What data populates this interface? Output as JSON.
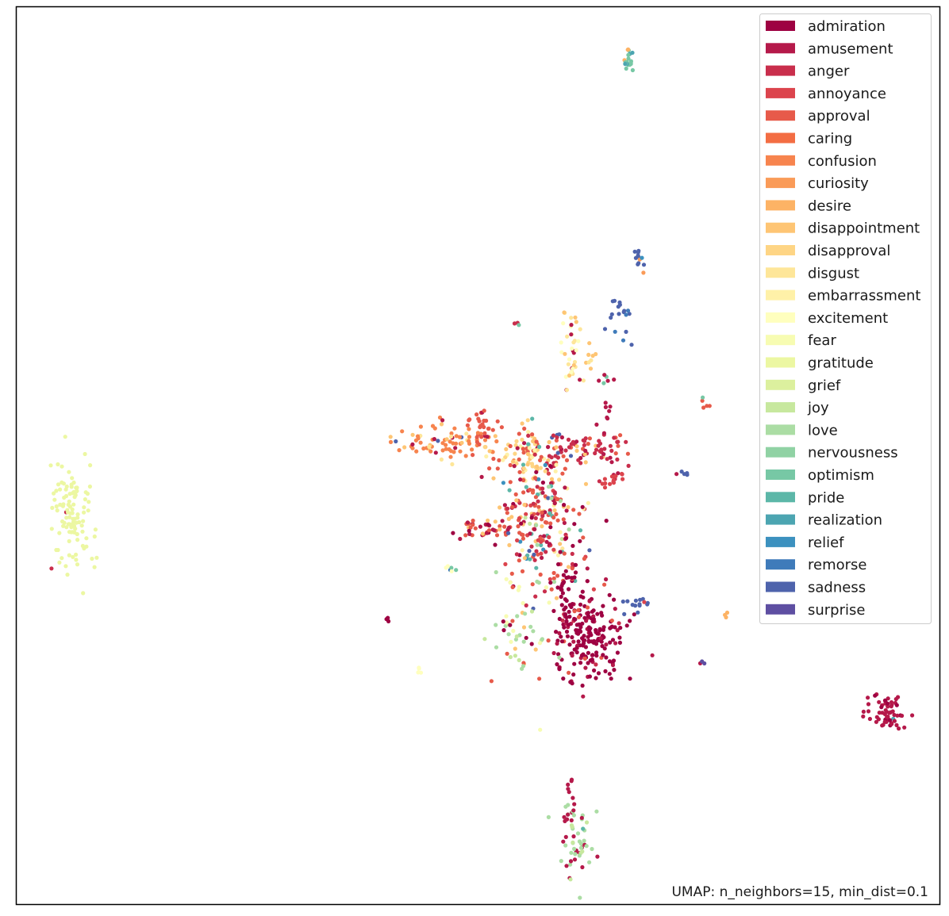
{
  "chart_data": {
    "type": "scatter",
    "title": "",
    "xlabel": "",
    "ylabel": "",
    "axes_ticks": false,
    "grid": false,
    "legend_position": "top-right",
    "annotation": "UMAP: n_neighbors=15, min_dist=0.1",
    "classes": [
      {
        "name": "admiration",
        "color": "#9e0142"
      },
      {
        "name": "amusement",
        "color": "#b5194a"
      },
      {
        "name": "anger",
        "color": "#c92e4c"
      },
      {
        "name": "annoyance",
        "color": "#dc444d"
      },
      {
        "name": "approval",
        "color": "#e75a4a"
      },
      {
        "name": "caring",
        "color": "#f36d43"
      },
      {
        "name": "confusion",
        "color": "#f7844e"
      },
      {
        "name": "curiosity",
        "color": "#fa9b58"
      },
      {
        "name": "desire",
        "color": "#fdb365"
      },
      {
        "name": "disappointment",
        "color": "#fec574"
      },
      {
        "name": "disapproval",
        "color": "#fed585"
      },
      {
        "name": "disgust",
        "color": "#fee699"
      },
      {
        "name": "embarrassment",
        "color": "#fff1a8"
      },
      {
        "name": "excitement",
        "color": "#ffffbe"
      },
      {
        "name": "fear",
        "color": "#f7fcb2"
      },
      {
        "name": "gratitude",
        "color": "#ecf7a2"
      },
      {
        "name": "grief",
        "color": "#dcf09e"
      },
      {
        "name": "joy",
        "color": "#c7e89e"
      },
      {
        "name": "love",
        "color": "#abdda4"
      },
      {
        "name": "nervousness",
        "color": "#90d2a4"
      },
      {
        "name": "optimism",
        "color": "#77c8a5"
      },
      {
        "name": "pride",
        "color": "#5cb7a8"
      },
      {
        "name": "realization",
        "color": "#4ca5b1"
      },
      {
        "name": "relief",
        "color": "#3c91bf"
      },
      {
        "name": "remorse",
        "color": "#3f7bba"
      },
      {
        "name": "sadness",
        "color": "#4e63ac"
      },
      {
        "name": "surprise",
        "color": "#5e4fa2"
      }
    ],
    "clusters": [
      {
        "c": 15,
        "x": 0.06,
        "y": 0.57,
        "sx": 0.012,
        "sy": 0.028,
        "n": 110,
        "mix": [
          [
            2,
            4
          ]
        ]
      },
      {
        "c": 20,
        "x": 0.662,
        "y": 0.057,
        "sx": 0.003,
        "sy": 0.008,
        "n": 20,
        "mix": [
          [
            22,
            4
          ],
          [
            8,
            2
          ]
        ]
      },
      {
        "c": 25,
        "x": 0.675,
        "y": 0.28,
        "sx": 0.003,
        "sy": 0.008,
        "n": 12,
        "mix": [
          [
            23,
            3
          ],
          [
            7,
            2
          ]
        ]
      },
      {
        "c": 25,
        "x": 0.655,
        "y": 0.352,
        "sx": 0.007,
        "sy": 0.017,
        "n": 18,
        "mix": [
          [
            24,
            3
          ]
        ]
      },
      {
        "c": 6,
        "x": 0.46,
        "y": 0.483,
        "sx": 0.028,
        "sy": 0.011,
        "n": 75,
        "mix": [
          [
            9,
            10
          ],
          [
            1,
            6
          ],
          [
            11,
            4
          ],
          [
            25,
            2
          ]
        ]
      },
      {
        "c": 4,
        "x": 0.505,
        "y": 0.47,
        "sx": 0.01,
        "sy": 0.013,
        "n": 30,
        "mix": [
          [
            6,
            6
          ],
          [
            1,
            3
          ]
        ]
      },
      {
        "c": 10,
        "x": 0.555,
        "y": 0.5,
        "sx": 0.018,
        "sy": 0.016,
        "n": 90,
        "mix": [
          [
            12,
            20
          ],
          [
            9,
            15
          ],
          [
            4,
            20
          ],
          [
            1,
            5
          ],
          [
            21,
            4
          ]
        ]
      },
      {
        "c": 2,
        "x": 0.615,
        "y": 0.492,
        "sx": 0.025,
        "sy": 0.01,
        "n": 80,
        "mix": [
          [
            1,
            20
          ],
          [
            25,
            8
          ],
          [
            4,
            10
          ],
          [
            9,
            6
          ]
        ]
      },
      {
        "c": 4,
        "x": 0.57,
        "y": 0.57,
        "sx": 0.022,
        "sy": 0.04,
        "n": 250,
        "mix": [
          [
            2,
            40
          ],
          [
            1,
            25
          ],
          [
            0,
            20
          ],
          [
            9,
            25
          ],
          [
            12,
            12
          ],
          [
            21,
            10
          ],
          [
            25,
            8
          ],
          [
            23,
            6
          ],
          [
            18,
            8
          ],
          [
            3,
            20
          ],
          [
            11,
            8
          ],
          [
            17,
            6
          ]
        ]
      },
      {
        "c": 4,
        "x": 0.51,
        "y": 0.58,
        "sx": 0.014,
        "sy": 0.006,
        "n": 40,
        "mix": [
          [
            1,
            10
          ],
          [
            9,
            8
          ],
          [
            0,
            5
          ]
        ]
      },
      {
        "c": 11,
        "x": 0.6,
        "y": 0.38,
        "sx": 0.006,
        "sy": 0.03,
        "n": 40,
        "mix": [
          [
            13,
            10
          ],
          [
            1,
            6
          ],
          [
            9,
            8
          ]
        ]
      },
      {
        "c": 0,
        "x": 0.62,
        "y": 0.7,
        "sx": 0.018,
        "sy": 0.028,
        "n": 200,
        "mix": [
          [
            1,
            30
          ],
          [
            2,
            10
          ],
          [
            4,
            8
          ]
        ]
      },
      {
        "c": 0,
        "x": 0.592,
        "y": 0.655,
        "sx": 0.006,
        "sy": 0.03,
        "n": 40,
        "mix": [
          [
            4,
            8
          ]
        ]
      },
      {
        "c": 18,
        "x": 0.548,
        "y": 0.69,
        "sx": 0.016,
        "sy": 0.035,
        "n": 55,
        "mix": [
          [
            14,
            10
          ],
          [
            0,
            8
          ],
          [
            9,
            8
          ],
          [
            4,
            6
          ],
          [
            17,
            5
          ]
        ]
      },
      {
        "c": 1,
        "x": 0.945,
        "y": 0.787,
        "sx": 0.012,
        "sy": 0.013,
        "n": 60,
        "mix": [
          [
            0,
            10
          ],
          [
            22,
            3
          ]
        ]
      },
      {
        "c": 18,
        "x": 0.607,
        "y": 0.932,
        "sx": 0.009,
        "sy": 0.017,
        "n": 50,
        "mix": [
          [
            1,
            12
          ],
          [
            17,
            6
          ],
          [
            21,
            3
          ]
        ]
      },
      {
        "c": 1,
        "x": 0.6,
        "y": 0.885,
        "sx": 0.003,
        "sy": 0.012,
        "n": 16,
        "mix": [
          [
            18,
            3
          ]
        ]
      },
      {
        "c": 25,
        "x": 0.672,
        "y": 0.665,
        "sx": 0.01,
        "sy": 0.005,
        "n": 14,
        "mix": [
          [
            3,
            3
          ],
          [
            8,
            2
          ]
        ]
      },
      {
        "c": 3,
        "x": 0.65,
        "y": 0.525,
        "sx": 0.004,
        "sy": 0.006,
        "n": 10,
        "mix": [
          [
            1,
            3
          ]
        ]
      },
      {
        "c": 4,
        "x": 0.745,
        "y": 0.44,
        "sx": 0.004,
        "sy": 0.003,
        "n": 5,
        "mix": [
          [
            20,
            2
          ]
        ]
      },
      {
        "c": 25,
        "x": 0.72,
        "y": 0.52,
        "sx": 0.006,
        "sy": 0.002,
        "n": 5,
        "mix": [
          [
            1,
            2
          ]
        ]
      },
      {
        "c": 9,
        "x": 0.62,
        "y": 0.39,
        "sx": 0.004,
        "sy": 0.007,
        "n": 8,
        "mix": [
          [
            11,
            3
          ]
        ]
      },
      {
        "c": 24,
        "x": 0.47,
        "y": 0.627,
        "sx": 0.004,
        "sy": 0.004,
        "n": 6,
        "mix": [
          [
            20,
            3
          ],
          [
            13,
            2
          ]
        ]
      },
      {
        "c": 13,
        "x": 0.435,
        "y": 0.74,
        "sx": 0.003,
        "sy": 0.003,
        "n": 4,
        "mix": []
      },
      {
        "c": 0,
        "x": 0.403,
        "y": 0.684,
        "sx": 0.002,
        "sy": 0.002,
        "n": 3,
        "mix": []
      },
      {
        "c": 8,
        "x": 0.768,
        "y": 0.675,
        "sx": 0.002,
        "sy": 0.003,
        "n": 3,
        "mix": []
      },
      {
        "c": 26,
        "x": 0.742,
        "y": 0.73,
        "sx": 0.002,
        "sy": 0.003,
        "n": 3,
        "mix": [
          [
            1,
            1
          ]
        ]
      },
      {
        "c": 20,
        "x": 0.542,
        "y": 0.351,
        "sx": 0.002,
        "sy": 0.002,
        "n": 3,
        "mix": [
          [
            2,
            1
          ]
        ]
      },
      {
        "c": 1,
        "x": 0.637,
        "y": 0.415,
        "sx": 0.005,
        "sy": 0.004,
        "n": 6,
        "mix": [
          [
            20,
            2
          ]
        ]
      },
      {
        "c": 1,
        "x": 0.64,
        "y": 0.45,
        "sx": 0.003,
        "sy": 0.006,
        "n": 6,
        "mix": []
      },
      {
        "c": 3,
        "x": 0.64,
        "y": 0.53,
        "sx": 0.004,
        "sy": 0.004,
        "n": 6,
        "mix": []
      }
    ]
  }
}
